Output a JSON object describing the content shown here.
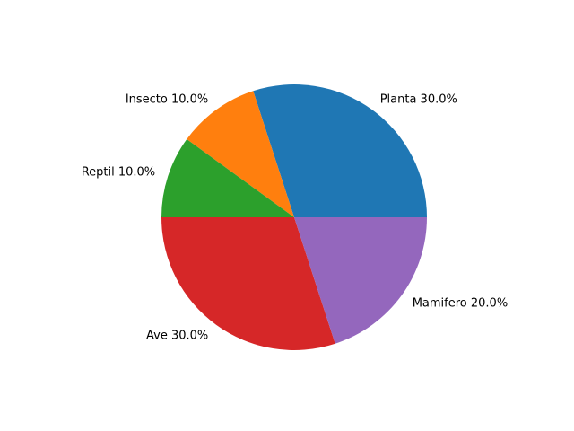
{
  "chart_data": {
    "type": "pie",
    "start_angle_deg": 0,
    "direction": "counterclockwise",
    "slices": [
      {
        "label": "Planta",
        "percent_label": "30.0%",
        "value": 30.0,
        "color": "#1f77b4"
      },
      {
        "label": "Insecto",
        "percent_label": "10.0%",
        "value": 10.0,
        "color": "#ff7f0e"
      },
      {
        "label": "Reptil",
        "percent_label": "10.0%",
        "value": 10.0,
        "color": "#2ca02c"
      },
      {
        "label": "Ave",
        "percent_label": "30.0%",
        "value": 30.0,
        "color": "#d62728"
      },
      {
        "label": "Mamifero",
        "percent_label": "20.0%",
        "value": 20.0,
        "color": "#9467bd"
      }
    ]
  }
}
